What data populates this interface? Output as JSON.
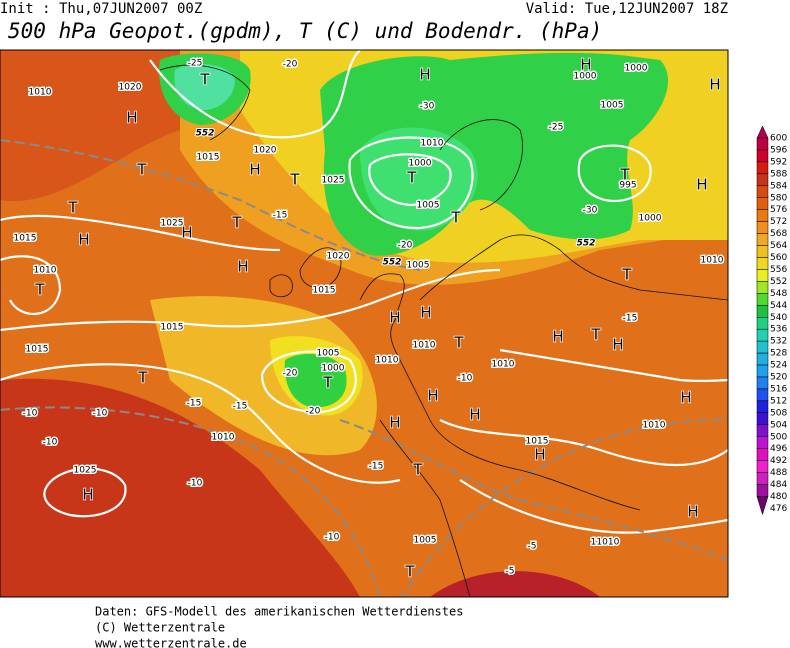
{
  "header": {
    "init": "Init : Thu,07JUN2007 00Z",
    "valid": "Valid: Tue,12JUN2007 18Z",
    "title": "500 hPa Geopot.(gpdm), T (C) und Bodendr. (hPa)"
  },
  "colorbar": {
    "labels": [
      600,
      596,
      592,
      588,
      584,
      580,
      576,
      572,
      568,
      564,
      560,
      556,
      552,
      548,
      544,
      540,
      536,
      532,
      528,
      524,
      520,
      516,
      512,
      508,
      504,
      500,
      496,
      492,
      488,
      484,
      480,
      476
    ]
  },
  "map_labels": [
    "H",
    "T",
    "H",
    "1020",
    "1010",
    "1015",
    "1020",
    "H",
    "T",
    "T",
    "1025",
    "T",
    "1000",
    "1010",
    "1005",
    "T",
    "H",
    "1000",
    "1000",
    "1005",
    "T",
    "995",
    "1000",
    "H",
    "H",
    "T",
    "1010",
    "1015",
    "H",
    "T",
    "1025",
    "H",
    "T",
    "H",
    "1020",
    "1005",
    "1015",
    "1015",
    "1015",
    "T",
    "1005",
    "1000",
    "T",
    "1010",
    "1010",
    "H",
    "H",
    "T",
    "H",
    "H",
    "1010",
    "H",
    "T",
    "H",
    "1010",
    "T",
    "1010",
    "H",
    "1025",
    "H",
    "1010",
    "H",
    "T",
    "1015",
    "H",
    "H",
    "1005",
    "T",
    "11010"
  ],
  "temp_labels": [
    "-25",
    "-20",
    "-15",
    "-10",
    "-10",
    "-10",
    "-10",
    "-10",
    "-5",
    "-5",
    "-20",
    "-20",
    "-25",
    "-30",
    "-30",
    "-20",
    "-15",
    "-15",
    "-15",
    "-15",
    "-10"
  ],
  "height_labels": [
    "552",
    "552",
    "552"
  ],
  "footer": [
    "Daten: GFS-Modell des amerikanischen Wetterdienstes",
    "(C) Wetterzentrale",
    "www.wetterzentrale.de"
  ]
}
